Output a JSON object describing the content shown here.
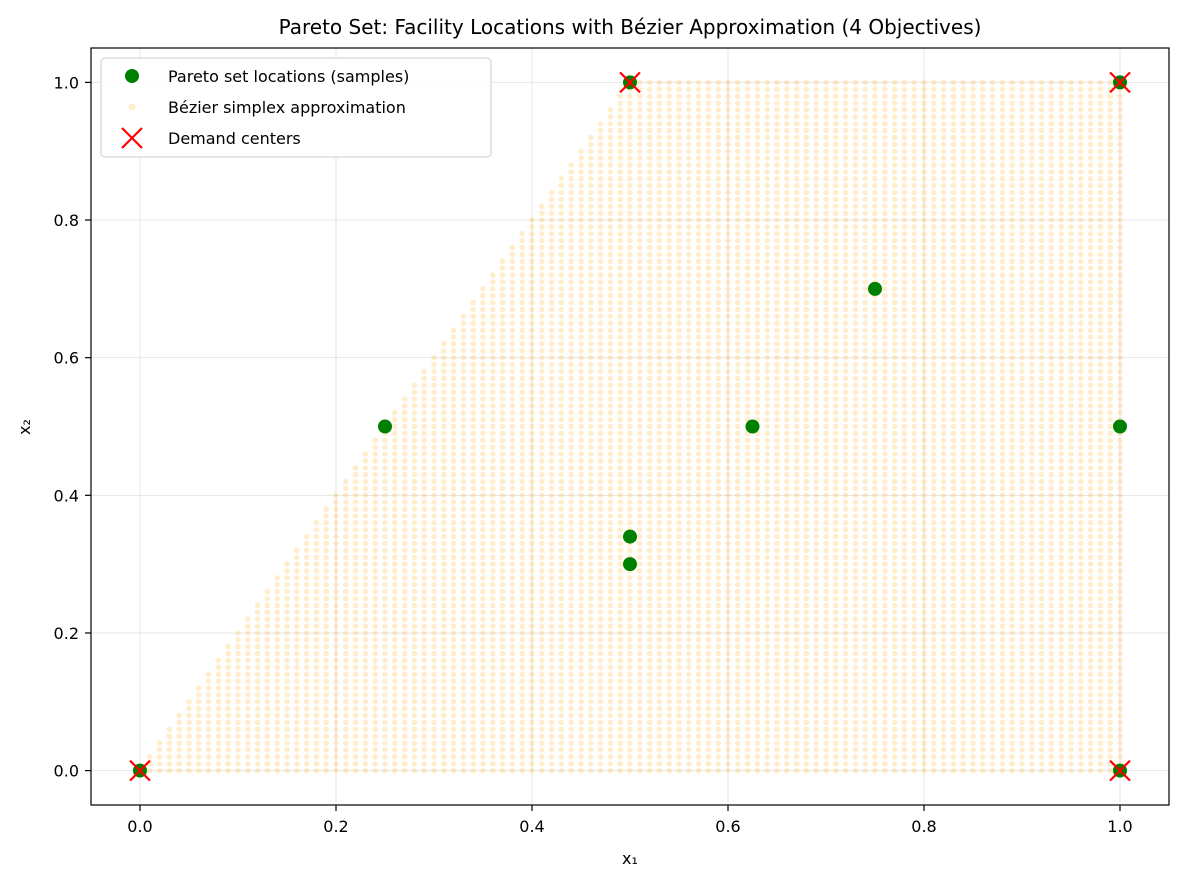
{
  "chart_data": {
    "type": "scatter",
    "title": "Pareto Set: Facility Locations with Bézier Approximation (4 Objectives)",
    "xlabel": "x₁",
    "ylabel": "x₂",
    "xlim": [
      -0.05,
      1.05
    ],
    "ylim": [
      -0.05,
      1.05
    ],
    "xticks": [
      0.0,
      0.2,
      0.4,
      0.6,
      0.8,
      1.0
    ],
    "yticks": [
      0.0,
      0.2,
      0.4,
      0.6,
      0.8,
      1.0
    ],
    "xtick_labels": [
      "0.0",
      "0.2",
      "0.4",
      "0.6",
      "0.8",
      "1.0"
    ],
    "ytick_labels": [
      "0.0",
      "0.2",
      "0.4",
      "0.6",
      "0.8",
      "1.0"
    ],
    "grid": true,
    "legend_position": "top-left",
    "series": [
      {
        "name": "Pareto set locations (samples)",
        "marker": "circle",
        "color": "#008000",
        "points": [
          [
            0.0,
            0.0
          ],
          [
            0.5,
            1.0
          ],
          [
            1.0,
            1.0
          ],
          [
            1.0,
            0.0
          ],
          [
            0.25,
            0.5
          ],
          [
            0.625,
            0.5
          ],
          [
            0.75,
            0.7
          ],
          [
            0.5,
            0.34
          ],
          [
            0.5,
            0.3
          ],
          [
            1.0,
            0.5
          ]
        ]
      },
      {
        "name": "Bézier simplex approximation",
        "marker": "small-circle",
        "color": "#FFA500",
        "region": {
          "vertices": [
            [
              0.0,
              0.0
            ],
            [
              0.5,
              1.0
            ],
            [
              1.0,
              1.0
            ],
            [
              1.0,
              0.0
            ]
          ],
          "grid_step": 0.01
        }
      },
      {
        "name": "Demand centers",
        "marker": "x",
        "color": "#FF0000",
        "points": [
          [
            0.0,
            0.0
          ],
          [
            0.5,
            1.0
          ],
          [
            1.0,
            1.0
          ],
          [
            1.0,
            0.0
          ]
        ]
      }
    ]
  }
}
